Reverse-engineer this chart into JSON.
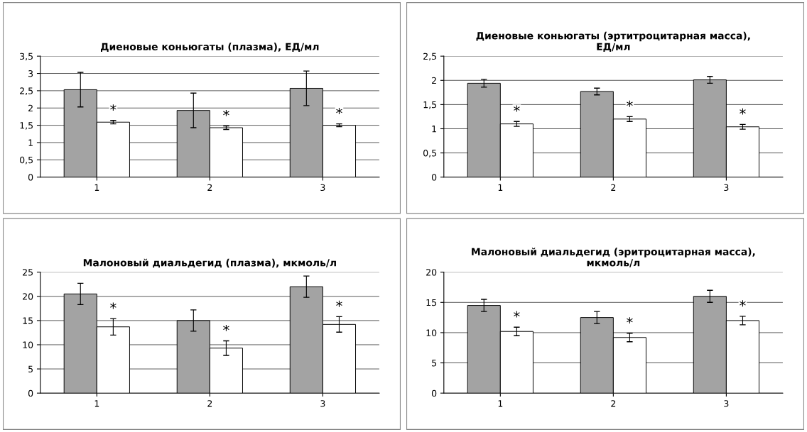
{
  "chart_data": [
    {
      "type": "bar",
      "title": "Диеновые коньюгаты (плазма), ЕД/мл",
      "categories": [
        "1",
        "2",
        "3"
      ],
      "series": [
        {
          "color": "#a3a3a3",
          "values": [
            2.53,
            1.93,
            2.57
          ],
          "errors": [
            0.5,
            0.5,
            0.5
          ]
        },
        {
          "color": "#ffffff",
          "values": [
            1.59,
            1.43,
            1.5
          ],
          "errors": [
            0.05,
            0.05,
            0.04
          ]
        }
      ],
      "ylim": [
        0,
        3.5
      ],
      "yticks": [
        0,
        {
          "value": 0.5,
          "label": "0,5"
        },
        1,
        {
          "value": 1.5,
          "label": "1,5"
        },
        2,
        {
          "value": 2.5,
          "label": "2,5"
        },
        3,
        {
          "value": 3.5,
          "label": "3,5"
        }
      ],
      "grid": "y",
      "annotations": [
        {
          "text": "*",
          "x": "1",
          "y": 1.64
        },
        {
          "text": "*",
          "x": "2",
          "y": 1.48
        },
        {
          "text": "*",
          "x": "3",
          "y": 1.54
        }
      ]
    },
    {
      "type": "bar",
      "title": "Диеновые коньюгаты (эртитроцитарная масса),\nЕД/мл",
      "categories": [
        "1",
        "2",
        "3"
      ],
      "series": [
        {
          "color": "#a3a3a3",
          "values": [
            1.94,
            1.77,
            2.01
          ],
          "errors": [
            0.08,
            0.07,
            0.07
          ]
        },
        {
          "color": "#ffffff",
          "values": [
            1.1,
            1.2,
            1.04
          ],
          "errors": [
            0.05,
            0.05,
            0.05
          ]
        }
      ],
      "ylim": [
        0,
        2.5
      ],
      "yticks": [
        0,
        {
          "value": 0.5,
          "label": "0,5"
        },
        1,
        {
          "value": 1.5,
          "label": "1,5"
        },
        2,
        {
          "value": 2.5,
          "label": "2,5"
        }
      ],
      "grid": "y",
      "annotations": [
        {
          "text": "*",
          "x": "1",
          "y": 1.15
        },
        {
          "text": "*",
          "x": "2",
          "y": 1.25
        },
        {
          "text": "*",
          "x": "3",
          "y": 1.09
        }
      ]
    },
    {
      "type": "bar",
      "title": "Малоновый диальдегид (плазма), мкмоль/л",
      "categories": [
        "1",
        "2",
        "3"
      ],
      "series": [
        {
          "color": "#a3a3a3",
          "values": [
            20.5,
            15,
            22
          ],
          "errors": [
            2.2,
            2.2,
            2.2
          ]
        },
        {
          "color": "#ffffff",
          "values": [
            13.7,
            9.3,
            14.2
          ],
          "errors": [
            1.7,
            1.5,
            1.6
          ]
        }
      ],
      "ylim": [
        0,
        25
      ],
      "yticks": [
        0,
        5,
        10,
        15,
        20,
        25
      ],
      "grid": "y",
      "annotations": [
        {
          "text": "*",
          "x": "1",
          "y": 15.4
        },
        {
          "text": "*",
          "x": "2",
          "y": 10.8
        },
        {
          "text": "*",
          "x": "3",
          "y": 15.8
        }
      ]
    },
    {
      "type": "bar",
      "title": "Малоновый диальдегид (эритроцитарная масса),\nмкмоль/л",
      "categories": [
        "1",
        "2",
        "3"
      ],
      "series": [
        {
          "color": "#a3a3a3",
          "values": [
            14.5,
            12.5,
            16
          ],
          "errors": [
            1,
            1,
            1
          ]
        },
        {
          "color": "#ffffff",
          "values": [
            10.2,
            9.2,
            12
          ],
          "errors": [
            0.7,
            0.7,
            0.7
          ]
        }
      ],
      "ylim": [
        0,
        20
      ],
      "yticks": [
        0,
        5,
        10,
        15,
        20
      ],
      "grid": "y",
      "annotations": [
        {
          "text": "*",
          "x": "1",
          "y": 10.9
        },
        {
          "text": "*",
          "x": "2",
          "y": 9.9
        },
        {
          "text": "*",
          "x": "3",
          "y": 12.7
        }
      ]
    }
  ]
}
